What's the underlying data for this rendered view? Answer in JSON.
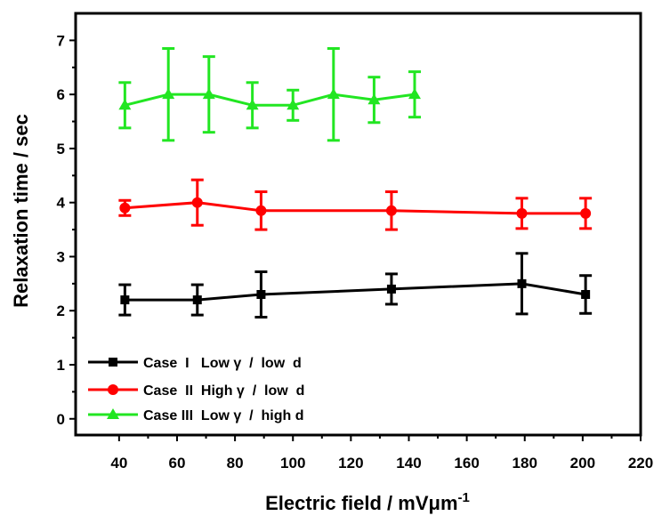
{
  "chart_data": {
    "type": "line",
    "xlabel": "Electric field / mVμm",
    "xlabel_sup": "-1",
    "ylabel": "Relaxation time / sec",
    "xlim": [
      25,
      220
    ],
    "ylim": [
      -0.3,
      7.5
    ],
    "xticks": [
      40,
      60,
      80,
      100,
      120,
      140,
      160,
      180,
      200,
      220
    ],
    "yticks": [
      0,
      1,
      2,
      3,
      4,
      5,
      6,
      7
    ],
    "grid": false,
    "legend_position": "bottom-left",
    "series": [
      {
        "name": "Case  I   Low γ  /  low  d",
        "color": "#000000",
        "marker": "square",
        "x": [
          42,
          67,
          89,
          134,
          179,
          201
        ],
        "y": [
          2.2,
          2.2,
          2.3,
          2.4,
          2.5,
          2.3
        ],
        "err": [
          0.28,
          0.28,
          0.42,
          0.28,
          0.56,
          0.35
        ]
      },
      {
        "name": "Case  II  High γ  /  low  d",
        "color": "#ff0000",
        "marker": "circle",
        "x": [
          42,
          67,
          89,
          134,
          179,
          201
        ],
        "y": [
          3.9,
          4.0,
          3.85,
          3.85,
          3.8,
          3.8
        ],
        "err": [
          0.14,
          0.42,
          0.35,
          0.35,
          0.28,
          0.28
        ]
      },
      {
        "name": "Case III  Low γ  /  high d",
        "color": "#22e622",
        "marker": "triangle",
        "x": [
          42,
          57,
          71,
          86,
          100,
          114,
          128,
          142
        ],
        "y": [
          5.8,
          6.0,
          6.0,
          5.8,
          5.8,
          6.0,
          5.9,
          6.0
        ],
        "err": [
          0.42,
          0.85,
          0.7,
          0.42,
          0.28,
          0.85,
          0.42,
          0.42
        ]
      }
    ]
  }
}
